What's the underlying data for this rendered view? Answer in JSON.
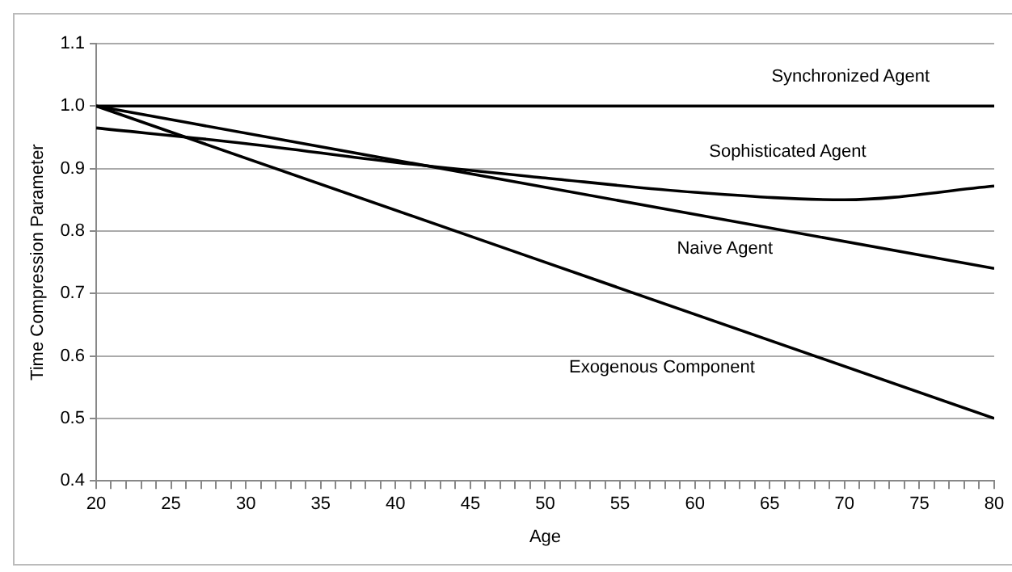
{
  "chart_data": {
    "type": "line",
    "xlabel": "Age",
    "ylabel": "Time Compression Parameter",
    "xlim": [
      20,
      80
    ],
    "ylim": [
      0.4,
      1.1
    ],
    "xticks": [
      20,
      {
        "value": 21,
        "label": null
      },
      {
        "value": 22,
        "label": null
      },
      {
        "value": 23,
        "label": null
      },
      {
        "value": 24,
        "label": null
      },
      25,
      {
        "value": 26,
        "label": null
      },
      {
        "value": 27,
        "label": null
      },
      {
        "value": 28,
        "label": null
      },
      {
        "value": 29,
        "label": null
      },
      30,
      {
        "value": 31,
        "label": null
      },
      {
        "value": 32,
        "label": null
      },
      {
        "value": 33,
        "label": null
      },
      {
        "value": 34,
        "label": null
      },
      35,
      {
        "value": 36,
        "label": null
      },
      {
        "value": 37,
        "label": null
      },
      {
        "value": 38,
        "label": null
      },
      {
        "value": 39,
        "label": null
      },
      40,
      {
        "value": 41,
        "label": null
      },
      {
        "value": 42,
        "label": null
      },
      {
        "value": 43,
        "label": null
      },
      {
        "value": 44,
        "label": null
      },
      45,
      {
        "value": 46,
        "label": null
      },
      {
        "value": 47,
        "label": null
      },
      {
        "value": 48,
        "label": null
      },
      {
        "value": 49,
        "label": null
      },
      50,
      {
        "value": 51,
        "label": null
      },
      {
        "value": 52,
        "label": null
      },
      {
        "value": 53,
        "label": null
      },
      {
        "value": 54,
        "label": null
      },
      55,
      {
        "value": 56,
        "label": null
      },
      {
        "value": 57,
        "label": null
      },
      {
        "value": 58,
        "label": null
      },
      {
        "value": 59,
        "label": null
      },
      60,
      {
        "value": 61,
        "label": null
      },
      {
        "value": 62,
        "label": null
      },
      {
        "value": 63,
        "label": null
      },
      {
        "value": 64,
        "label": null
      },
      65,
      {
        "value": 66,
        "label": null
      },
      {
        "value": 67,
        "label": null
      },
      {
        "value": 68,
        "label": null
      },
      {
        "value": 69,
        "label": null
      },
      70,
      {
        "value": 71,
        "label": null
      },
      {
        "value": 72,
        "label": null
      },
      {
        "value": 73,
        "label": null
      },
      {
        "value": 74,
        "label": null
      },
      75,
      {
        "value": 76,
        "label": null
      },
      {
        "value": 77,
        "label": null
      },
      {
        "value": 78,
        "label": null
      },
      {
        "value": 79,
        "label": null
      },
      80
    ],
    "yticks": [
      {
        "value": 0.4,
        "label": "0.4"
      },
      {
        "value": 0.5,
        "label": "0.5"
      },
      {
        "value": 0.6,
        "label": "0.6"
      },
      {
        "value": 0.7,
        "label": "0.7"
      },
      {
        "value": 0.8,
        "label": "0.8"
      },
      {
        "value": 0.9,
        "label": "0.9"
      },
      {
        "value": 1.0,
        "label": "1.0"
      },
      {
        "value": 1.1,
        "label": "1.1"
      }
    ],
    "grid": "y",
    "legend": false,
    "marker": "none",
    "line_style": "solid",
    "series": [
      {
        "name": "Synchronized Agent",
        "color": "#000000",
        "x": [
          20,
          80
        ],
        "values": [
          1.0,
          1.0
        ]
      },
      {
        "name": "Sophisticated Agent",
        "color": "#000000",
        "x": [
          20,
          30,
          40,
          50,
          60,
          70,
          80
        ],
        "values": [
          0.965,
          0.94,
          0.91,
          0.885,
          0.862,
          0.85,
          0.872
        ]
      },
      {
        "name": "Naive Agent",
        "color": "#000000",
        "x": [
          20,
          80
        ],
        "values": [
          1.0,
          0.74
        ]
      },
      {
        "name": "Exogenous Component",
        "color": "#000000",
        "x": [
          20,
          80
        ],
        "values": [
          1.0,
          0.5
        ]
      }
    ]
  }
}
